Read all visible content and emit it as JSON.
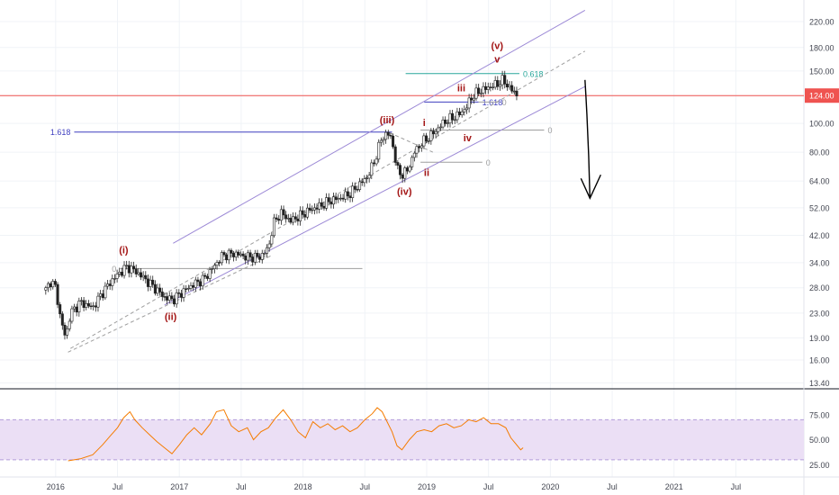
{
  "chart_data": {
    "type": "candlestick",
    "title": "",
    "scale": "log",
    "price_axis": {
      "ticks": [
        220.0,
        180.0,
        150.0,
        124.0,
        100.0,
        80.0,
        64.0,
        52.0,
        42.0,
        34.0,
        28.0,
        23.0,
        19.0,
        16.0,
        13.4
      ],
      "tick_labels": [
        "220.00",
        "180.00",
        "150.00",
        "124.00",
        "100.00",
        "80.00",
        "64.00",
        "52.00",
        "42.00",
        "34.00",
        "28.00",
        "23.00",
        "19.00",
        "16.00",
        "13.40"
      ],
      "range": [
        12.8,
        260
      ]
    },
    "last_price": {
      "value": 124.0,
      "label": "124.00",
      "color": "#ef5350"
    },
    "time_axis": {
      "labels": [
        "2016",
        "Jul",
        "2017",
        "Jul",
        "2018",
        "Jul",
        "2019",
        "Jul",
        "2020",
        "Jul",
        "2021",
        "Jul"
      ],
      "label_dates": [
        2016.0,
        2016.5,
        2017.0,
        2017.5,
        2018.0,
        2018.5,
        2019.0,
        2019.5,
        2020.0,
        2020.5,
        2021.0,
        2021.5
      ],
      "range": [
        2015.55,
        2022.05
      ]
    },
    "price_path": [
      [
        2015.92,
        27.5
      ],
      [
        2015.96,
        29.5
      ],
      [
        2016.0,
        28.0
      ],
      [
        2016.04,
        22.0
      ],
      [
        2016.08,
        19.0
      ],
      [
        2016.12,
        23.0
      ],
      [
        2016.2,
        25.0
      ],
      [
        2016.3,
        24.0
      ],
      [
        2016.38,
        27.0
      ],
      [
        2016.45,
        29.5
      ],
      [
        2016.52,
        31.5
      ],
      [
        2016.58,
        33.0
      ],
      [
        2016.66,
        31.5
      ],
      [
        2016.72,
        30.0
      ],
      [
        2016.8,
        28.0
      ],
      [
        2016.88,
        26.0
      ],
      [
        2016.95,
        25.5
      ],
      [
        2017.02,
        27.0
      ],
      [
        2017.1,
        28.5
      ],
      [
        2017.2,
        30.0
      ],
      [
        2017.28,
        33.0
      ],
      [
        2017.35,
        36.0
      ],
      [
        2017.45,
        36.5
      ],
      [
        2017.55,
        35.5
      ],
      [
        2017.65,
        35.5
      ],
      [
        2017.72,
        38.0
      ],
      [
        2017.76,
        46.0
      ],
      [
        2017.82,
        50.0
      ],
      [
        2017.9,
        47.0
      ],
      [
        2017.98,
        49.0
      ],
      [
        2018.05,
        51.0
      ],
      [
        2018.15,
        53.0
      ],
      [
        2018.22,
        55.0
      ],
      [
        2018.3,
        56.0
      ],
      [
        2018.38,
        58.0
      ],
      [
        2018.45,
        62.0
      ],
      [
        2018.52,
        66.0
      ],
      [
        2018.58,
        75.0
      ],
      [
        2018.63,
        88.0
      ],
      [
        2018.68,
        93.0
      ],
      [
        2018.72,
        88.0
      ],
      [
        2018.76,
        70.0
      ],
      [
        2018.8,
        67.0
      ],
      [
        2018.85,
        70.0
      ],
      [
        2018.9,
        80.0
      ],
      [
        2018.96,
        86.0
      ],
      [
        2019.02,
        90.0
      ],
      [
        2019.08,
        95.0
      ],
      [
        2019.14,
        101.0
      ],
      [
        2019.2,
        104.0
      ],
      [
        2019.26,
        107.0
      ],
      [
        2019.32,
        113.0
      ],
      [
        2019.36,
        122.0
      ],
      [
        2019.42,
        128.0
      ],
      [
        2019.5,
        132.0
      ],
      [
        2019.56,
        135.0
      ],
      [
        2019.62,
        140.0
      ],
      [
        2019.66,
        133.0
      ],
      [
        2019.7,
        128.0
      ],
      [
        2019.74,
        124.0
      ]
    ],
    "rsi": {
      "ticks": [
        75.0,
        50.0,
        25.0
      ],
      "tick_labels": [
        "75.00",
        "50.00",
        "25.00"
      ],
      "range": [
        20,
        100
      ],
      "band": [
        30,
        70
      ],
      "values": [
        [
          2016.1,
          29
        ],
        [
          2016.2,
          31
        ],
        [
          2016.3,
          35
        ],
        [
          2016.38,
          45
        ],
        [
          2016.45,
          55
        ],
        [
          2016.5,
          62
        ],
        [
          2016.55,
          72
        ],
        [
          2016.6,
          78
        ],
        [
          2016.64,
          70
        ],
        [
          2016.7,
          62
        ],
        [
          2016.76,
          55
        ],
        [
          2016.82,
          48
        ],
        [
          2016.88,
          42
        ],
        [
          2016.94,
          36
        ],
        [
          2017.0,
          45
        ],
        [
          2017.06,
          55
        ],
        [
          2017.12,
          62
        ],
        [
          2017.18,
          55
        ],
        [
          2017.25,
          66
        ],
        [
          2017.3,
          78
        ],
        [
          2017.36,
          80
        ],
        [
          2017.42,
          64
        ],
        [
          2017.48,
          58
        ],
        [
          2017.55,
          62
        ],
        [
          2017.6,
          50
        ],
        [
          2017.66,
          58
        ],
        [
          2017.72,
          62
        ],
        [
          2017.78,
          72
        ],
        [
          2017.84,
          80
        ],
        [
          2017.9,
          70
        ],
        [
          2017.96,
          58
        ],
        [
          2018.02,
          52
        ],
        [
          2018.08,
          68
        ],
        [
          2018.14,
          62
        ],
        [
          2018.2,
          66
        ],
        [
          2018.26,
          60
        ],
        [
          2018.32,
          64
        ],
        [
          2018.38,
          58
        ],
        [
          2018.44,
          62
        ],
        [
          2018.5,
          70
        ],
        [
          2018.56,
          76
        ],
        [
          2018.6,
          82
        ],
        [
          2018.64,
          78
        ],
        [
          2018.68,
          68
        ],
        [
          2018.72,
          58
        ],
        [
          2018.76,
          44
        ],
        [
          2018.8,
          40
        ],
        [
          2018.86,
          50
        ],
        [
          2018.92,
          58
        ],
        [
          2018.98,
          60
        ],
        [
          2019.04,
          58
        ],
        [
          2019.1,
          64
        ],
        [
          2019.16,
          66
        ],
        [
          2019.22,
          62
        ],
        [
          2019.28,
          64
        ],
        [
          2019.34,
          70
        ],
        [
          2019.4,
          68
        ],
        [
          2019.46,
          72
        ],
        [
          2019.52,
          66
        ],
        [
          2019.58,
          66
        ],
        [
          2019.64,
          62
        ],
        [
          2019.68,
          52
        ],
        [
          2019.72,
          46
        ],
        [
          2019.76,
          40
        ],
        [
          2019.78,
          42
        ]
      ]
    },
    "channels": [
      {
        "name": "upper-channel-line",
        "style": "solid",
        "color": "#9c89d6",
        "from": [
          2016.95,
          39.5
        ],
        "to": [
          2020.28,
          240
        ]
      },
      {
        "name": "mid-channel-line",
        "style": "dashed",
        "color": "#9e9e9e",
        "from": [
          2016.12,
          17.5
        ],
        "to": [
          2020.28,
          175
        ]
      },
      {
        "name": "lower-channel-line",
        "style": "solid",
        "color": "#9c89d6",
        "from": [
          2016.88,
          24.5
        ],
        "to": [
          2020.28,
          133
        ]
      },
      {
        "name": "lower-dashed-line",
        "style": "dashed",
        "color": "#9e9e9e",
        "from": [
          2016.1,
          17.0
        ],
        "to": [
          2017.75,
          36.0
        ]
      },
      {
        "name": "fib-link-dashed",
        "style": "dashed",
        "color": "#9e9e9e",
        "from": [
          2018.7,
          93.0
        ],
        "to": [
          2019.05,
          80.0
        ]
      }
    ],
    "levels": [
      {
        "name": "level-1618-lower",
        "y": 93.5,
        "x1": 2016.15,
        "x2": 2018.72,
        "color": "#3f3fbf",
        "label": "1.618",
        "label_side": "left"
      },
      {
        "name": "level-0-lower",
        "y": 32.5,
        "x1": 2016.52,
        "x2": 2018.48,
        "color": "#9e9e9e",
        "label": "0",
        "label_side": "left"
      },
      {
        "name": "level-618-top",
        "y": 147,
        "x1": 2018.83,
        "x2": 2019.75,
        "color": "#26a69a",
        "label": "0.618",
        "label_side": "right"
      },
      {
        "name": "level-1618-mid",
        "y": 118,
        "x1": 2018.98,
        "x2": 2019.42,
        "color": "#3f3fbf",
        "label": "1.618",
        "label_side": "right"
      },
      {
        "name": "level-0-mid",
        "y": 118,
        "x1": 2019.42,
        "x2": 2019.58,
        "color": "#9e9e9e",
        "label": "0",
        "label_side": "right"
      },
      {
        "name": "level-0-iv",
        "y": 95,
        "x1": 2018.95,
        "x2": 2019.95,
        "color": "#9e9e9e",
        "label": "0",
        "label_side": "right"
      },
      {
        "name": "level-0-ii",
        "y": 74,
        "x1": 2018.95,
        "x2": 2019.45,
        "color": "#9e9e9e",
        "label": "0",
        "label_side": "right"
      }
    ],
    "annotations": [
      {
        "text": "(i)",
        "x": 2016.55,
        "y": 36.5
      },
      {
        "text": "(ii)",
        "x": 2016.93,
        "y": 21.8
      },
      {
        "text": "(iii)",
        "x": 2018.68,
        "y": 100
      },
      {
        "text": "(iv)",
        "x": 2018.82,
        "y": 57.5
      },
      {
        "text": "(v)",
        "x": 2019.57,
        "y": 178
      },
      {
        "text": "i",
        "x": 2018.98,
        "y": 98
      },
      {
        "text": "ii",
        "x": 2019.0,
        "y": 66.5
      },
      {
        "text": "iii",
        "x": 2019.28,
        "y": 128
      },
      {
        "text": "iv",
        "x": 2019.33,
        "y": 87
      },
      {
        "text": "v",
        "x": 2019.57,
        "y": 160
      }
    ],
    "projection_arrow": {
      "from": [
        2020.28,
        140
      ],
      "to": [
        2020.32,
        56
      ],
      "color": "#000000"
    }
  }
}
